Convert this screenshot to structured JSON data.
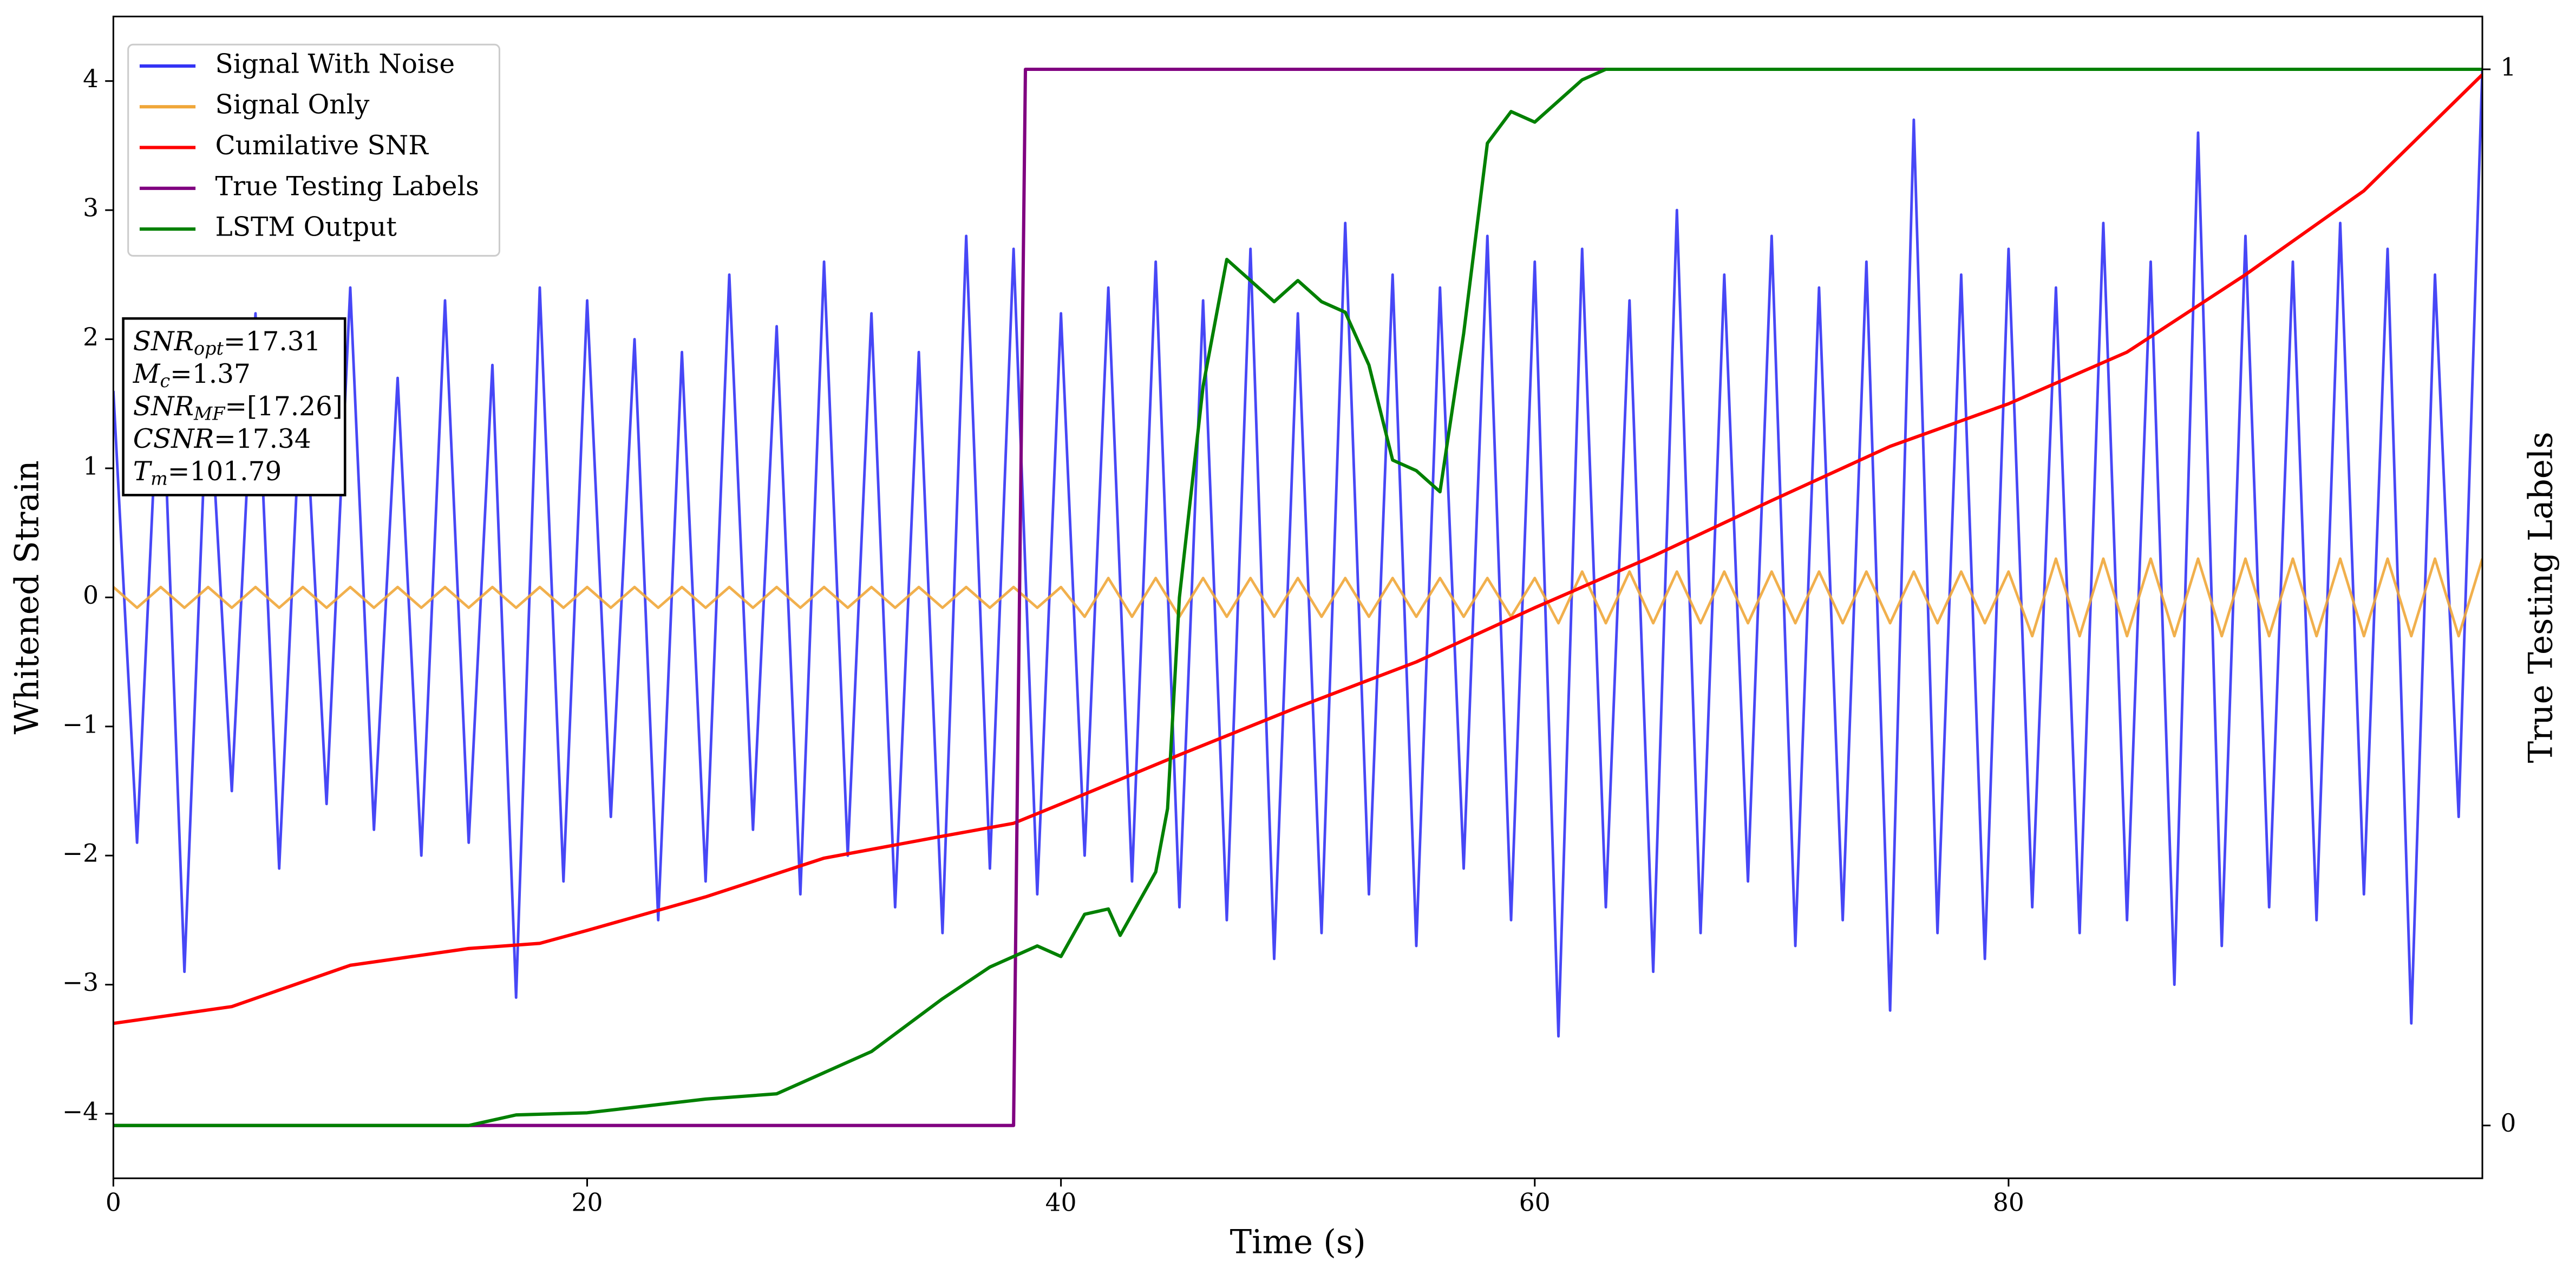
{
  "chart_data": {
    "type": "line",
    "xlabel": "Time (s)",
    "ylabel": "Whitened Strain",
    "y2label": "True Testing Labels",
    "xlim": [
      0,
      100
    ],
    "ylim": [
      -4.5,
      4.5
    ],
    "y2lim": [
      -0.05,
      1.05
    ],
    "xticks": [
      0,
      20,
      40,
      60,
      80
    ],
    "yticks": [
      {
        "value": -4,
        "label": "−4"
      },
      {
        "value": -3,
        "label": "−3"
      },
      {
        "value": -2,
        "label": "−2"
      },
      {
        "value": -1,
        "label": "−1"
      },
      0,
      1,
      2,
      3,
      4
    ],
    "y2ticks": [
      0,
      1
    ],
    "legend": "upper-left",
    "annotation": [
      {
        "main": "SNR",
        "sub": "opt",
        "text": "=17.31"
      },
      {
        "main": "M",
        "sub": "c",
        "text": "=1.37"
      },
      {
        "main": "SNR",
        "sub": "MF",
        "text": "=[17.26]"
      },
      {
        "main": "CSNR",
        "text": "=17.34"
      },
      {
        "main": "T",
        "sub": "m",
        "text": "=101.79"
      }
    ],
    "series": [
      {
        "name": "Signal With Noise",
        "color": "#3333f5",
        "axis": "y",
        "x": [
          0,
          1,
          2,
          3,
          4,
          5,
          6,
          7,
          8,
          9,
          10,
          11,
          12,
          13,
          14,
          15,
          16,
          17,
          18,
          19,
          20,
          21,
          22,
          23,
          24,
          25,
          26,
          27,
          28,
          29,
          30,
          31,
          32,
          33,
          34,
          35,
          36,
          37,
          38,
          39,
          40,
          41,
          42,
          43,
          44,
          45,
          46,
          47,
          48,
          49,
          50,
          51,
          52,
          53,
          54,
          55,
          56,
          57,
          58,
          59,
          60,
          61,
          62,
          63,
          64,
          65,
          66,
          67,
          68,
          69,
          70,
          71,
          72,
          73,
          74,
          75,
          76,
          77,
          78,
          79,
          80,
          81,
          82,
          83,
          84,
          85,
          86,
          87,
          88,
          89,
          90,
          91,
          92,
          93,
          94,
          95,
          96,
          97,
          98,
          99,
          100
        ],
        "values": [
          1.6,
          -1.9,
          2.1,
          -2.9,
          1.8,
          -1.5,
          2.2,
          -2.1,
          1.9,
          -1.6,
          2.4,
          -1.8,
          1.7,
          -2.0,
          2.3,
          -1.9,
          1.8,
          -3.1,
          2.4,
          -2.2,
          2.3,
          -1.7,
          2.0,
          -2.5,
          1.9,
          -2.2,
          2.5,
          -1.8,
          2.1,
          -2.3,
          2.6,
          -2.0,
          2.2,
          -2.4,
          1.9,
          -2.6,
          2.8,
          -2.1,
          2.7,
          -2.3,
          2.2,
          -2.0,
          2.4,
          -2.2,
          2.6,
          -2.4,
          2.3,
          -2.5,
          2.7,
          -2.8,
          2.2,
          -2.6,
          2.9,
          -2.3,
          2.5,
          -2.7,
          2.4,
          -2.1,
          2.8,
          -2.5,
          2.6,
          -3.4,
          2.7,
          -2.4,
          2.3,
          -2.9,
          3.0,
          -2.6,
          2.5,
          -2.2,
          2.8,
          -2.7,
          2.4,
          -2.5,
          2.6,
          -3.2,
          3.7,
          -2.6,
          2.5,
          -2.8,
          2.7,
          -2.4,
          2.4,
          -2.6,
          2.9,
          -2.5,
          2.6,
          -3.0,
          3.6,
          -2.7,
          2.8,
          -2.4,
          2.6,
          -2.5,
          2.9,
          -2.3,
          2.7,
          -3.3,
          2.5,
          -1.7,
          4.1
        ]
      },
      {
        "name": "Signal Only",
        "color": "#f0a73a",
        "axis": "y",
        "x": [
          0,
          1,
          2,
          3,
          4,
          5,
          6,
          7,
          8,
          9,
          10,
          11,
          12,
          13,
          14,
          15,
          16,
          17,
          18,
          19,
          20,
          21,
          22,
          23,
          24,
          25,
          26,
          27,
          28,
          29,
          30,
          31,
          32,
          33,
          34,
          35,
          36,
          37,
          38,
          39,
          40,
          41,
          42,
          43,
          44,
          45,
          46,
          47,
          48,
          49,
          50,
          51,
          52,
          53,
          54,
          55,
          56,
          57,
          58,
          59,
          60,
          61,
          62,
          63,
          64,
          65,
          66,
          67,
          68,
          69,
          70,
          71,
          72,
          73,
          74,
          75,
          76,
          77,
          78,
          79,
          80,
          81,
          82,
          83,
          84,
          85,
          86,
          87,
          88,
          89,
          90,
          91,
          92,
          93,
          94,
          95,
          96,
          97,
          98,
          99,
          100
        ],
        "values": [
          0.08,
          -0.08,
          0.08,
          -0.08,
          0.08,
          -0.08,
          0.08,
          -0.08,
          0.08,
          -0.08,
          0.08,
          -0.08,
          0.08,
          -0.08,
          0.08,
          -0.08,
          0.08,
          -0.08,
          0.08,
          -0.08,
          0.08,
          -0.08,
          0.08,
          -0.08,
          0.08,
          -0.08,
          0.08,
          -0.08,
          0.08,
          -0.08,
          0.08,
          -0.08,
          0.08,
          -0.08,
          0.08,
          -0.08,
          0.08,
          -0.08,
          0.08,
          -0.08,
          0.08,
          -0.15,
          0.15,
          -0.15,
          0.15,
          -0.15,
          0.15,
          -0.15,
          0.15,
          -0.15,
          0.15,
          -0.15,
          0.15,
          -0.15,
          0.15,
          -0.15,
          0.15,
          -0.15,
          0.15,
          -0.15,
          0.15,
          -0.2,
          0.2,
          -0.2,
          0.2,
          -0.2,
          0.2,
          -0.2,
          0.2,
          -0.2,
          0.2,
          -0.2,
          0.2,
          -0.2,
          0.2,
          -0.2,
          0.2,
          -0.2,
          0.2,
          -0.2,
          0.2,
          -0.3,
          0.3,
          -0.3,
          0.3,
          -0.3,
          0.3,
          -0.3,
          0.3,
          -0.3,
          0.3,
          -0.3,
          0.3,
          -0.3,
          0.3,
          -0.3,
          0.3,
          -0.3,
          0.3,
          -0.3,
          0.3
        ]
      },
      {
        "name": "Cumilative SNR",
        "color": "#ff0000",
        "axis": "y",
        "x": [
          0,
          5,
          10,
          15,
          18,
          20,
          25,
          30,
          35,
          38,
          40,
          45,
          50,
          55,
          60,
          65,
          70,
          75,
          80,
          85,
          90,
          95,
          100
        ],
        "values": [
          -3.3,
          -3.17,
          -2.85,
          -2.72,
          -2.68,
          -2.58,
          -2.32,
          -2.02,
          -1.85,
          -1.75,
          -1.6,
          -1.22,
          -0.85,
          -0.5,
          -0.08,
          0.32,
          0.75,
          1.17,
          1.5,
          1.9,
          2.5,
          3.15,
          4.05
        ]
      },
      {
        "name": "True Testing Labels",
        "color": "#800080",
        "axis": "y2",
        "x": [
          0,
          38,
          38.5,
          100
        ],
        "values": [
          0,
          0,
          1,
          1
        ]
      },
      {
        "name": "LSTM Output",
        "color": "#008000",
        "axis": "y2",
        "x": [
          0,
          15,
          17,
          20,
          25,
          28,
          30,
          32,
          35,
          37,
          39,
          40,
          41,
          42,
          42.5,
          44,
          44.5,
          45,
          46,
          47,
          48,
          49,
          50,
          51,
          52,
          53,
          54,
          55,
          56,
          57,
          58,
          59,
          60,
          61,
          62,
          63,
          65,
          70,
          100
        ],
        "values": [
          0,
          0,
          0.01,
          0.012,
          0.025,
          0.03,
          0.05,
          0.07,
          0.12,
          0.15,
          0.17,
          0.16,
          0.2,
          0.205,
          0.18,
          0.24,
          0.3,
          0.5,
          0.7,
          0.82,
          0.8,
          0.78,
          0.8,
          0.78,
          0.77,
          0.72,
          0.63,
          0.62,
          0.6,
          0.75,
          0.93,
          0.96,
          0.95,
          0.97,
          0.99,
          1.0,
          1.0,
          1.0,
          1.0
        ]
      }
    ]
  }
}
